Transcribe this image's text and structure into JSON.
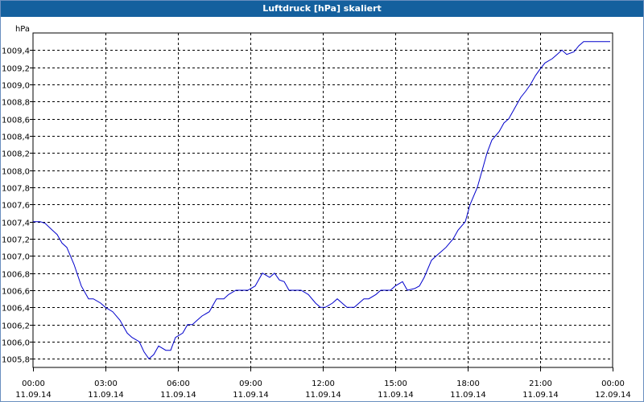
{
  "window": {
    "title": "Luftdruck [hPa] skaliert"
  },
  "colors": {
    "titlebar": "#14609e",
    "line": "#0000cc",
    "grid": "#000000",
    "background": "#ffffff"
  },
  "chart_data": {
    "type": "line",
    "title": "Luftdruck [hPa] skaliert",
    "ylabel": "hPa",
    "xlabel": "",
    "grid": true,
    "ylim": [
      1005.7,
      1009.6
    ],
    "xlim_hours": [
      0,
      24
    ],
    "yticks": [
      "1005,8",
      "1006,0",
      "1006,2",
      "1006,4",
      "1006,6",
      "1006,8",
      "1007,0",
      "1007,2",
      "1007,4",
      "1007,6",
      "1007,8",
      "1008,0",
      "1008,2",
      "1008,4",
      "1008,6",
      "1008,8",
      "1009,0",
      "1009,2",
      "1009,4"
    ],
    "xticks": [
      {
        "time": "00:00",
        "date": "11.09.14"
      },
      {
        "time": "03:00",
        "date": "11.09.14"
      },
      {
        "time": "06:00",
        "date": "11.09.14"
      },
      {
        "time": "09:00",
        "date": "11.09.14"
      },
      {
        "time": "12:00",
        "date": "11.09.14"
      },
      {
        "time": "15:00",
        "date": "11.09.14"
      },
      {
        "time": "18:00",
        "date": "11.09.14"
      },
      {
        "time": "21:00",
        "date": "11.09.14"
      },
      {
        "time": "00:00",
        "date": "12.09.14"
      }
    ],
    "series": [
      {
        "x": [
          0,
          0.3,
          0.5,
          0.8,
          1.0,
          1.2,
          1.4,
          1.7,
          2.0,
          2.3,
          2.5,
          2.8,
          3.0,
          3.3,
          3.6,
          3.9,
          4.1,
          4.4,
          4.6,
          4.8,
          5.0,
          5.2,
          5.5,
          5.7,
          5.9,
          6.2,
          6.4,
          6.6,
          6.8,
          7.0,
          7.3,
          7.6,
          7.9,
          8.1,
          8.4,
          8.6,
          8.9,
          9.2,
          9.5,
          9.8,
          10.0,
          10.2,
          10.4,
          10.6,
          10.9,
          11.1,
          11.4,
          11.7,
          11.9,
          12.1,
          12.4,
          12.6,
          12.8,
          13.0,
          13.3,
          13.5,
          13.7,
          13.9,
          14.2,
          14.4,
          14.6,
          14.8,
          15.0,
          15.3,
          15.5,
          15.8,
          16.0,
          16.2,
          16.5,
          16.7,
          16.9,
          17.1,
          17.4,
          17.6,
          17.9,
          18.1,
          18.4,
          18.6,
          18.8,
          19.0,
          19.3,
          19.5,
          19.7,
          19.9,
          20.2,
          20.4,
          20.6,
          20.8,
          21.0,
          21.2,
          21.5,
          21.7,
          21.9,
          22.1,
          22.4,
          22.6,
          22.8,
          23.0,
          23.2,
          23.4,
          23.7,
          23.9
        ],
        "y": [
          1007.4,
          1007.4,
          1007.38,
          1007.3,
          1007.25,
          1007.15,
          1007.1,
          1006.9,
          1006.65,
          1006.5,
          1006.5,
          1006.45,
          1006.4,
          1006.35,
          1006.25,
          1006.1,
          1006.05,
          1006.0,
          1005.88,
          1005.8,
          1005.85,
          1005.95,
          1005.9,
          1005.9,
          1006.05,
          1006.1,
          1006.2,
          1006.2,
          1006.25,
          1006.3,
          1006.35,
          1006.5,
          1006.5,
          1006.55,
          1006.6,
          1006.6,
          1006.6,
          1006.65,
          1006.8,
          1006.75,
          1006.8,
          1006.72,
          1006.7,
          1006.6,
          1006.6,
          1006.6,
          1006.55,
          1006.45,
          1006.4,
          1006.4,
          1006.45,
          1006.5,
          1006.45,
          1006.4,
          1006.4,
          1006.45,
          1006.5,
          1006.5,
          1006.55,
          1006.6,
          1006.6,
          1006.6,
          1006.65,
          1006.7,
          1006.6,
          1006.62,
          1006.65,
          1006.75,
          1006.95,
          1007.0,
          1007.05,
          1007.1,
          1007.2,
          1007.3,
          1007.4,
          1007.6,
          1007.8,
          1008.0,
          1008.2,
          1008.35,
          1008.45,
          1008.55,
          1008.6,
          1008.7,
          1008.85,
          1008.92,
          1009.0,
          1009.1,
          1009.18,
          1009.25,
          1009.3,
          1009.35,
          1009.4,
          1009.35,
          1009.38,
          1009.45,
          1009.5,
          1009.5,
          1009.5,
          1009.5,
          1009.5,
          1009.5
        ]
      }
    ]
  }
}
